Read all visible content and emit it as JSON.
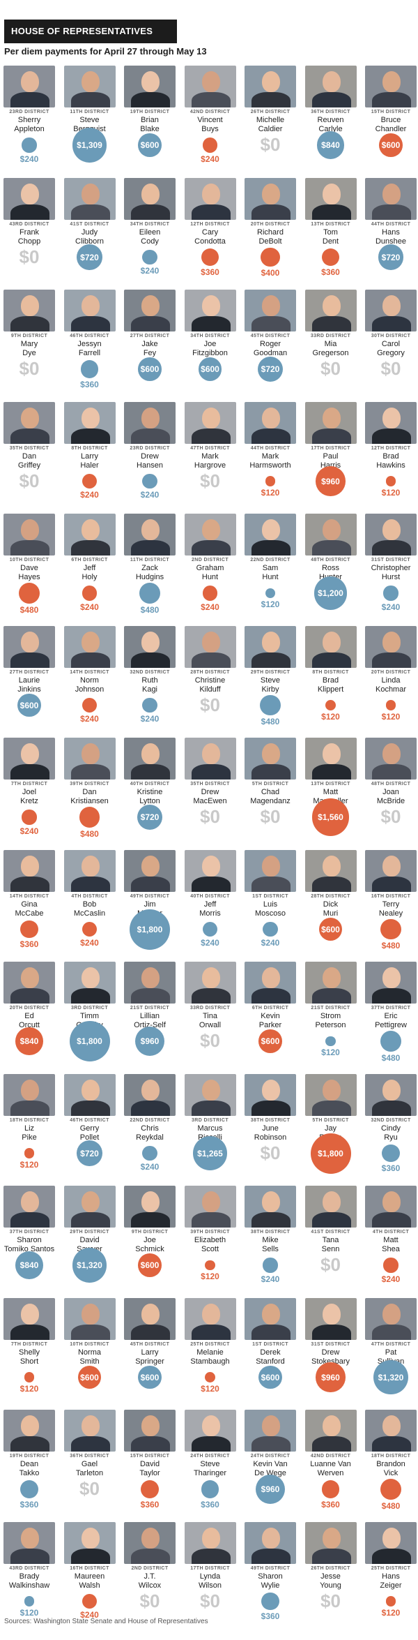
{
  "header": {
    "title": "HOUSE OF REPRESENTATIVES",
    "subtitle": "Per diem payments for April 27 through May 13"
  },
  "source": "Sources: Washington State Senate and House of Representatives",
  "colors": {
    "blue": "#6b9bb8",
    "orange": "#e0633e",
    "zero": "#c9c9c9",
    "header_bg": "#1c1c1c"
  },
  "chart_data": {
    "type": "bubble-grid",
    "title": "Per diem payments for April 27 through May 13",
    "unit": "$",
    "members": [
      {
        "district": "23RD DISTRICT",
        "first": "Sherry",
        "last": "Appleton",
        "value": 240,
        "party": "D"
      },
      {
        "district": "11TH DISTRICT",
        "first": "Steve",
        "last": "Bergquist",
        "value": 1309,
        "party": "D"
      },
      {
        "district": "19TH DISTRICT",
        "first": "Brian",
        "last": "Blake",
        "value": 600,
        "party": "D"
      },
      {
        "district": "42ND DISTRICT",
        "first": "Vincent",
        "last": "Buys",
        "value": 240,
        "party": "R"
      },
      {
        "district": "26TH DISTRICT",
        "first": "Michelle",
        "last": "Caldier",
        "value": 0,
        "party": "R"
      },
      {
        "district": "36TH DISTRICT",
        "first": "Reuven",
        "last": "Carlyle",
        "value": 840,
        "party": "D"
      },
      {
        "district": "15TH DISTRICT",
        "first": "Bruce",
        "last": "Chandler",
        "value": 600,
        "party": "R"
      },
      {
        "district": "43RD DISTRICT",
        "first": "Frank",
        "last": "Chopp",
        "value": 0,
        "party": "D"
      },
      {
        "district": "41ST DISTRICT",
        "first": "Judy",
        "last": "Clibborn",
        "value": 720,
        "party": "D"
      },
      {
        "district": "34TH DISTRICT",
        "first": "Eileen",
        "last": "Cody",
        "value": 240,
        "party": "D"
      },
      {
        "district": "12TH DISTRICT",
        "first": "Cary",
        "last": "Condotta",
        "value": 360,
        "party": "R"
      },
      {
        "district": "20TH DISTRICT",
        "first": "Richard",
        "last": "DeBolt",
        "value": 400,
        "party": "R"
      },
      {
        "district": "13TH DISTRICT",
        "first": "Tom",
        "last": "Dent",
        "value": 360,
        "party": "R"
      },
      {
        "district": "44TH DISTRICT",
        "first": "Hans",
        "last": "Dunshee",
        "value": 720,
        "party": "D"
      },
      {
        "district": "9TH DISTRICT",
        "first": "Mary",
        "last": "Dye",
        "value": 0,
        "party": "R"
      },
      {
        "district": "46TH DISTRICT",
        "first": "Jessyn",
        "last": "Farrell",
        "value": 360,
        "party": "D"
      },
      {
        "district": "27TH DISTRICT",
        "first": "Jake",
        "last": "Fey",
        "value": 600,
        "party": "D"
      },
      {
        "district": "34TH DISTRICT",
        "first": "Joe",
        "last": "Fitzgibbon",
        "value": 600,
        "party": "D"
      },
      {
        "district": "45TH DISTRICT",
        "first": "Roger",
        "last": "Goodman",
        "value": 720,
        "party": "D"
      },
      {
        "district": "33RD DISTRICT",
        "first": "Mia",
        "last": "Gregerson",
        "value": 0,
        "party": "D"
      },
      {
        "district": "30TH DISTRICT",
        "first": "Carol",
        "last": "Gregory",
        "value": 0,
        "party": "D"
      },
      {
        "district": "35TH DISTRICT",
        "first": "Dan",
        "last": "Griffey",
        "value": 0,
        "party": "R"
      },
      {
        "district": "8TH DISTRICT",
        "first": "Larry",
        "last": "Haler",
        "value": 240,
        "party": "R"
      },
      {
        "district": "23RD DISTRICT",
        "first": "Drew",
        "last": "Hansen",
        "value": 240,
        "party": "D"
      },
      {
        "district": "47TH DISTRICT",
        "first": "Mark",
        "last": "Hargrove",
        "value": 0,
        "party": "R"
      },
      {
        "district": "44TH DISTRICT",
        "first": "Mark",
        "last": "Harmsworth",
        "value": 120,
        "party": "R"
      },
      {
        "district": "17TH DISTRICT",
        "first": "Paul",
        "last": "Harris",
        "value": 960,
        "party": "R"
      },
      {
        "district": "12TH DISTRICT",
        "first": "Brad",
        "last": "Hawkins",
        "value": 120,
        "party": "R"
      },
      {
        "district": "10TH DISTRICT",
        "first": "Dave",
        "last": "Hayes",
        "value": 480,
        "party": "R"
      },
      {
        "district": "6TH DISTRICT",
        "first": "Jeff",
        "last": "Holy",
        "value": 240,
        "party": "R"
      },
      {
        "district": "11TH DISTRICT",
        "first": "Zack",
        "last": "Hudgins",
        "value": 480,
        "party": "D"
      },
      {
        "district": "2ND DISTRICT",
        "first": "Graham",
        "last": "Hunt",
        "value": 240,
        "party": "R"
      },
      {
        "district": "22ND DISTRICT",
        "first": "Sam",
        "last": "Hunt",
        "value": 120,
        "party": "D"
      },
      {
        "district": "48TH DISTRICT",
        "first": "Ross",
        "last": "Hunter",
        "value": 1200,
        "party": "D"
      },
      {
        "district": "31ST DISTRICT",
        "first": "Christopher",
        "last": "Hurst",
        "value": 240,
        "party": "D"
      },
      {
        "district": "27TH DISTRICT",
        "first": "Laurie",
        "last": "Jinkins",
        "value": 600,
        "party": "D"
      },
      {
        "district": "14TH DISTRICT",
        "first": "Norm",
        "last": "Johnson",
        "value": 240,
        "party": "R"
      },
      {
        "district": "32ND DISTRICT",
        "first": "Ruth",
        "last": "Kagi",
        "value": 240,
        "party": "D"
      },
      {
        "district": "28TH DISTRICT",
        "first": "Christine",
        "last": "Kilduff",
        "value": 0,
        "party": "D"
      },
      {
        "district": "29TH DISTRICT",
        "first": "Steve",
        "last": "Kirby",
        "value": 480,
        "party": "D"
      },
      {
        "district": "8TH DISTRICT",
        "first": "Brad",
        "last": "Klippert",
        "value": 120,
        "party": "R"
      },
      {
        "district": "20TH DISTRICT",
        "first": "Linda",
        "last": "Kochmar",
        "value": 120,
        "party": "R"
      },
      {
        "district": "7TH DISTRICT",
        "first": "Joel",
        "last": "Kretz",
        "value": 240,
        "party": "R"
      },
      {
        "district": "39TH DISTRICT",
        "first": "Dan",
        "last": "Kristiansen",
        "value": 480,
        "party": "R"
      },
      {
        "district": "40TH DISTRICT",
        "first": "Kristine",
        "last": "Lytton",
        "value": 720,
        "party": "D"
      },
      {
        "district": "35TH DISTRICT",
        "first": "Drew",
        "last": "MacEwen",
        "value": 0,
        "party": "R"
      },
      {
        "district": "5TH DISTRICT",
        "first": "Chad",
        "last": "Magendanz",
        "value": 0,
        "party": "R"
      },
      {
        "district": "13TH DISTRICT",
        "first": "Matt",
        "last": "Manweller",
        "value": 1560,
        "party": "R"
      },
      {
        "district": "48TH DISTRICT",
        "first": "Joan",
        "last": "McBride",
        "value": 0,
        "party": "D"
      },
      {
        "district": "14TH DISTRICT",
        "first": "Gina",
        "last": "McCabe",
        "value": 360,
        "party": "R"
      },
      {
        "district": "4TH DISTRICT",
        "first": "Bob",
        "last": "McCaslin",
        "value": 240,
        "party": "R"
      },
      {
        "district": "49TH DISTRICT",
        "first": "Jim",
        "last": "Moeller",
        "value": 1800,
        "party": "D"
      },
      {
        "district": "40TH DISTRICT",
        "first": "Jeff",
        "last": "Morris",
        "value": 240,
        "party": "D"
      },
      {
        "district": "1ST DISTRICT",
        "first": "Luis",
        "last": "Moscoso",
        "value": 240,
        "party": "D"
      },
      {
        "district": "28TH DISTRICT",
        "first": "Dick",
        "last": "Muri",
        "value": 600,
        "party": "R"
      },
      {
        "district": "16TH DISTRICT",
        "first": "Terry",
        "last": "Nealey",
        "value": 480,
        "party": "R"
      },
      {
        "district": "20TH DISTRICT",
        "first": "Ed",
        "last": "Orcutt",
        "value": 840,
        "party": "R"
      },
      {
        "district": "3RD DISTRICT",
        "first": "Timm",
        "last": "Ormsby",
        "value": 1800,
        "party": "D"
      },
      {
        "district": "21ST DISTRICT",
        "first": "Lillian",
        "last": "Ortiz-Self",
        "value": 960,
        "party": "D"
      },
      {
        "district": "33RD DISTRICT",
        "first": "Tina",
        "last": "Orwall",
        "value": 0,
        "party": "D"
      },
      {
        "district": "6TH DISTRICT",
        "first": "Kevin",
        "last": "Parker",
        "value": 600,
        "party": "R"
      },
      {
        "district": "21ST DISTRICT",
        "first": "Strom",
        "last": "Peterson",
        "value": 120,
        "party": "D"
      },
      {
        "district": "37TH DISTRICT",
        "first": "Eric",
        "last": "Pettigrew",
        "value": 480,
        "party": "D"
      },
      {
        "district": "18TH DISTRICT",
        "first": "Liz",
        "last": "Pike",
        "value": 120,
        "party": "R"
      },
      {
        "district": "46TH DISTRICT",
        "first": "Gerry",
        "last": "Pollet",
        "value": 720,
        "party": "D"
      },
      {
        "district": "22ND DISTRICT",
        "first": "Chris",
        "last": "Reykdal",
        "value": 240,
        "party": "D"
      },
      {
        "district": "3RD DISTRICT",
        "first": "Marcus",
        "last": "Riccelli",
        "value": 1265,
        "party": "D"
      },
      {
        "district": "38TH DISTRICT",
        "first": "June",
        "last": "Robinson",
        "value": 0,
        "party": "D"
      },
      {
        "district": "5TH DISTRICT",
        "first": "Jay",
        "last": "Rodne",
        "value": 1800,
        "party": "R"
      },
      {
        "district": "32ND DISTRICT",
        "first": "Cindy",
        "last": "Ryu",
        "value": 360,
        "party": "D"
      },
      {
        "district": "37TH DISTRICT",
        "first": "Sharon",
        "last": "Tomiko Santos",
        "value": 840,
        "party": "D"
      },
      {
        "district": "29TH DISTRICT",
        "first": "David",
        "last": "Sawyer",
        "value": 1320,
        "party": "D"
      },
      {
        "district": "9TH DISTRICT",
        "first": "Joe",
        "last": "Schmick",
        "value": 600,
        "party": "R"
      },
      {
        "district": "39TH DISTRICT",
        "first": "Elizabeth",
        "last": "Scott",
        "value": 120,
        "party": "R"
      },
      {
        "district": "38TH DISTRICT",
        "first": "Mike",
        "last": "Sells",
        "value": 240,
        "party": "D"
      },
      {
        "district": "41ST DISTRICT",
        "first": "Tana",
        "last": "Senn",
        "value": 0,
        "party": "D"
      },
      {
        "district": "4TH DISTRICT",
        "first": "Matt",
        "last": "Shea",
        "value": 240,
        "party": "R"
      },
      {
        "district": "7TH DISTRICT",
        "first": "Shelly",
        "last": "Short",
        "value": 120,
        "party": "R"
      },
      {
        "district": "10TH DISTRICT",
        "first": "Norma",
        "last": "Smith",
        "value": 600,
        "party": "R"
      },
      {
        "district": "45TH DISTRICT",
        "first": "Larry",
        "last": "Springer",
        "value": 600,
        "party": "D"
      },
      {
        "district": "25TH DISTRICT",
        "first": "Melanie",
        "last": "Stambaugh",
        "value": 120,
        "party": "R"
      },
      {
        "district": "1ST DISTRICT",
        "first": "Derek",
        "last": "Stanford",
        "value": 600,
        "party": "D"
      },
      {
        "district": "31ST DISTRICT",
        "first": "Drew",
        "last": "Stokesbary",
        "value": 960,
        "party": "R"
      },
      {
        "district": "47TH DISTRICT",
        "first": "Pat",
        "last": "Sullivan",
        "value": 1320,
        "party": "D"
      },
      {
        "district": "19TH DISTRICT",
        "first": "Dean",
        "last": "Takko",
        "value": 360,
        "party": "D"
      },
      {
        "district": "36TH DISTRICT",
        "first": "Gael",
        "last": "Tarleton",
        "value": 0,
        "party": "D"
      },
      {
        "district": "15TH DISTRICT",
        "first": "David",
        "last": "Taylor",
        "value": 360,
        "party": "R"
      },
      {
        "district": "24TH DISTRICT",
        "first": "Steve",
        "last": "Tharinger",
        "value": 360,
        "party": "D"
      },
      {
        "district": "24TH DISTRICT",
        "first": "Kevin Van",
        "last": "De Wege",
        "value": 960,
        "party": "D"
      },
      {
        "district": "42ND DISTRICT",
        "first": "Luanne Van",
        "last": "Werven",
        "value": 360,
        "party": "R"
      },
      {
        "district": "18TH DISTRICT",
        "first": "Brandon",
        "last": "Vick",
        "value": 480,
        "party": "R"
      },
      {
        "district": "43RD DISTRICT",
        "first": "Brady",
        "last": "Walkinshaw",
        "value": 120,
        "party": "D"
      },
      {
        "district": "16TH DISTRICT",
        "first": "Maureen",
        "last": "Walsh",
        "value": 240,
        "party": "R"
      },
      {
        "district": "2ND DISTRICT",
        "first": "J.T.",
        "last": "Wilcox",
        "value": 0,
        "party": "R"
      },
      {
        "district": "17TH DISTRICT",
        "first": "Lynda",
        "last": "Wilson",
        "value": 0,
        "party": "R"
      },
      {
        "district": "49TH DISTRICT",
        "first": "Sharon",
        "last": "Wylie",
        "value": 360,
        "party": "D"
      },
      {
        "district": "26TH DISTRICT",
        "first": "Jesse",
        "last": "Young",
        "value": 0,
        "party": "R"
      },
      {
        "district": "25TH DISTRICT",
        "first": "Hans",
        "last": "Zeiger",
        "value": 120,
        "party": "R"
      }
    ]
  }
}
